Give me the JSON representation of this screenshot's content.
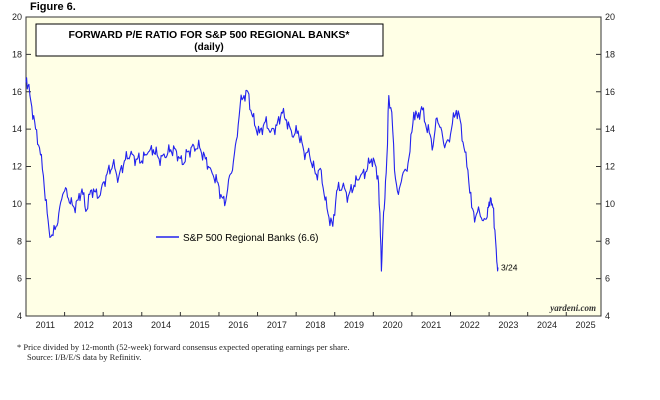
{
  "figure_label": "Figure 6.",
  "footnote": {
    "line1": "*   Price divided by 12-month (52-week) forward consensus expected operating earnings per share.",
    "line2": "Source: I/B/E/S data by Refinitiv."
  },
  "colors": {
    "plot_bg": "#ffffe6",
    "line": "#2222ee"
  },
  "chart_data": {
    "type": "line",
    "title": "FORWARD P/E RATIO FOR S&P 500 REGIONAL BANKS*",
    "subtitle": "(daily)",
    "xlabel": "",
    "ylabel": "",
    "xlim": [
      2011.0,
      2025.9
    ],
    "ylim": [
      4,
      20
    ],
    "y_ticks": [
      4,
      6,
      8,
      10,
      12,
      14,
      16,
      18,
      20
    ],
    "x_tick_labels": [
      "2011",
      "2012",
      "2013",
      "2014",
      "2015",
      "2016",
      "2017",
      "2018",
      "2019",
      "2020",
      "2021",
      "2022",
      "2023",
      "2024",
      "2025"
    ],
    "grid": false,
    "legend_position": "center-left",
    "end_label": "3/24",
    "watermark": "yardeni.com",
    "series": [
      {
        "name": "S&P 500 Regional Banks (6.6)",
        "x": [
          2011.0,
          2011.05,
          2011.15,
          2011.25,
          2011.35,
          2011.45,
          2011.55,
          2011.62,
          2011.7,
          2011.78,
          2011.85,
          2011.95,
          2012.05,
          2012.15,
          2012.25,
          2012.35,
          2012.45,
          2012.55,
          2012.65,
          2012.75,
          2012.85,
          2012.95,
          2013.1,
          2013.25,
          2013.4,
          2013.55,
          2013.7,
          2013.85,
          2014.0,
          2014.15,
          2014.3,
          2014.45,
          2014.6,
          2014.75,
          2014.9,
          2015.05,
          2015.2,
          2015.35,
          2015.5,
          2015.65,
          2015.8,
          2015.95,
          2016.05,
          2016.15,
          2016.25,
          2016.35,
          2016.45,
          2016.55,
          2016.65,
          2016.75,
          2016.85,
          2016.95,
          2017.05,
          2017.2,
          2017.35,
          2017.5,
          2017.62,
          2017.75,
          2017.9,
          2018.05,
          2018.2,
          2018.35,
          2018.5,
          2018.65,
          2018.75,
          2018.85,
          2018.95,
          2019.05,
          2019.2,
          2019.35,
          2019.5,
          2019.65,
          2019.8,
          2019.95,
          2020.05,
          2020.12,
          2020.17,
          2020.21,
          2020.25,
          2020.3,
          2020.35,
          2020.4,
          2020.48,
          2020.55,
          2020.65,
          2020.75,
          2020.85,
          2020.95,
          2021.05,
          2021.15,
          2021.25,
          2021.35,
          2021.45,
          2021.55,
          2021.65,
          2021.75,
          2021.85,
          2021.95,
          2022.05,
          2022.15,
          2022.25,
          2022.35,
          2022.45,
          2022.55,
          2022.65,
          2022.75,
          2022.85,
          2022.95,
          2023.0,
          2023.05,
          2023.1,
          2023.15,
          2023.2,
          2023.23
        ],
        "y": [
          16.5,
          16.3,
          15.2,
          14.0,
          13.0,
          11.5,
          9.5,
          8.2,
          8.3,
          8.8,
          9.5,
          10.5,
          10.8,
          10.0,
          9.8,
          10.2,
          10.8,
          9.6,
          10.5,
          10.8,
          10.3,
          10.8,
          11.6,
          12.1,
          11.4,
          12.3,
          12.6,
          12.4,
          12.3,
          12.7,
          12.9,
          12.4,
          12.5,
          12.9,
          12.8,
          12.1,
          12.8,
          13.1,
          13.0,
          12.4,
          11.8,
          11.2,
          10.5,
          9.9,
          11.3,
          11.8,
          13.4,
          15.3,
          15.8,
          16.0,
          14.8,
          14.1,
          13.8,
          14.4,
          13.9,
          14.2,
          14.9,
          14.5,
          13.6,
          13.9,
          12.8,
          12.6,
          11.6,
          11.8,
          10.2,
          9.3,
          8.8,
          10.7,
          10.9,
          10.4,
          11.0,
          11.4,
          11.7,
          12.4,
          12.1,
          11.5,
          9.5,
          6.4,
          8.8,
          10.3,
          12.4,
          15.8,
          14.9,
          11.8,
          10.5,
          11.5,
          11.8,
          12.8,
          14.9,
          14.6,
          15.2,
          14.3,
          13.8,
          13.1,
          14.6,
          14.1,
          13.0,
          13.4,
          14.3,
          15.0,
          14.5,
          13.0,
          11.8,
          9.8,
          9.3,
          9.6,
          9.1,
          9.3,
          10.1,
          10.3,
          9.8,
          8.6,
          6.9,
          6.6
        ]
      }
    ]
  }
}
